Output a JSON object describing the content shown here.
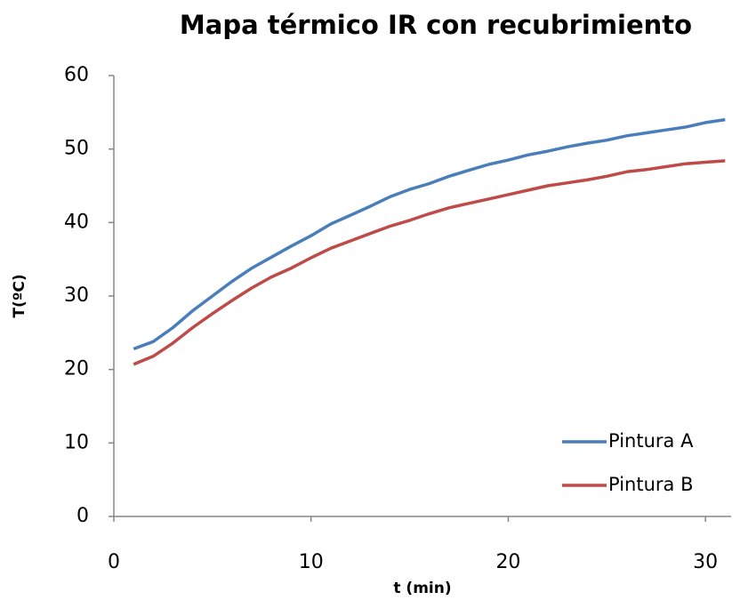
{
  "chart_data": {
    "type": "line",
    "title": "Mapa térmico IR con recubrimiento",
    "x_label": "t (min)",
    "y_label": "T(ºC)",
    "x": [
      1,
      2,
      3,
      4,
      5,
      6,
      7,
      8,
      9,
      10,
      11,
      12,
      13,
      14,
      15,
      16,
      17,
      18,
      19,
      20,
      21,
      22,
      23,
      24,
      25,
      26,
      27,
      28,
      29,
      30,
      31
    ],
    "series": [
      {
        "name": "Pintura A",
        "color": "#4a7ebb",
        "values": [
          22.8,
          23.8,
          25.7,
          28,
          30,
          32,
          33.8,
          35.3,
          36.8,
          38.2,
          39.8,
          41,
          42.2,
          43.5,
          44.5,
          45.3,
          46.3,
          47.1,
          47.9,
          48.5,
          49.2,
          49.7,
          50.3,
          50.8,
          51.2,
          51.8,
          52.2,
          52.6,
          53,
          53.6,
          54
        ]
      },
      {
        "name": "Pintura B",
        "color": "#be4b48",
        "values": [
          20.7,
          21.8,
          23.6,
          25.7,
          27.6,
          29.4,
          31.1,
          32.6,
          33.8,
          35.2,
          36.5,
          37.5,
          38.5,
          39.5,
          40.3,
          41.2,
          42,
          42.6,
          43.2,
          43.8,
          44.4,
          45,
          45.4,
          45.8,
          46.3,
          46.9,
          47.2,
          47.6,
          48,
          48.2,
          48.4
        ]
      }
    ],
    "xlim": [
      0,
      31.3
    ],
    "xticks": [
      0,
      10,
      20,
      30
    ],
    "ylim": [
      0,
      60
    ],
    "yticks": [
      0,
      10,
      20,
      30,
      40,
      50,
      60
    ],
    "grid": false,
    "legend": "lower right"
  }
}
